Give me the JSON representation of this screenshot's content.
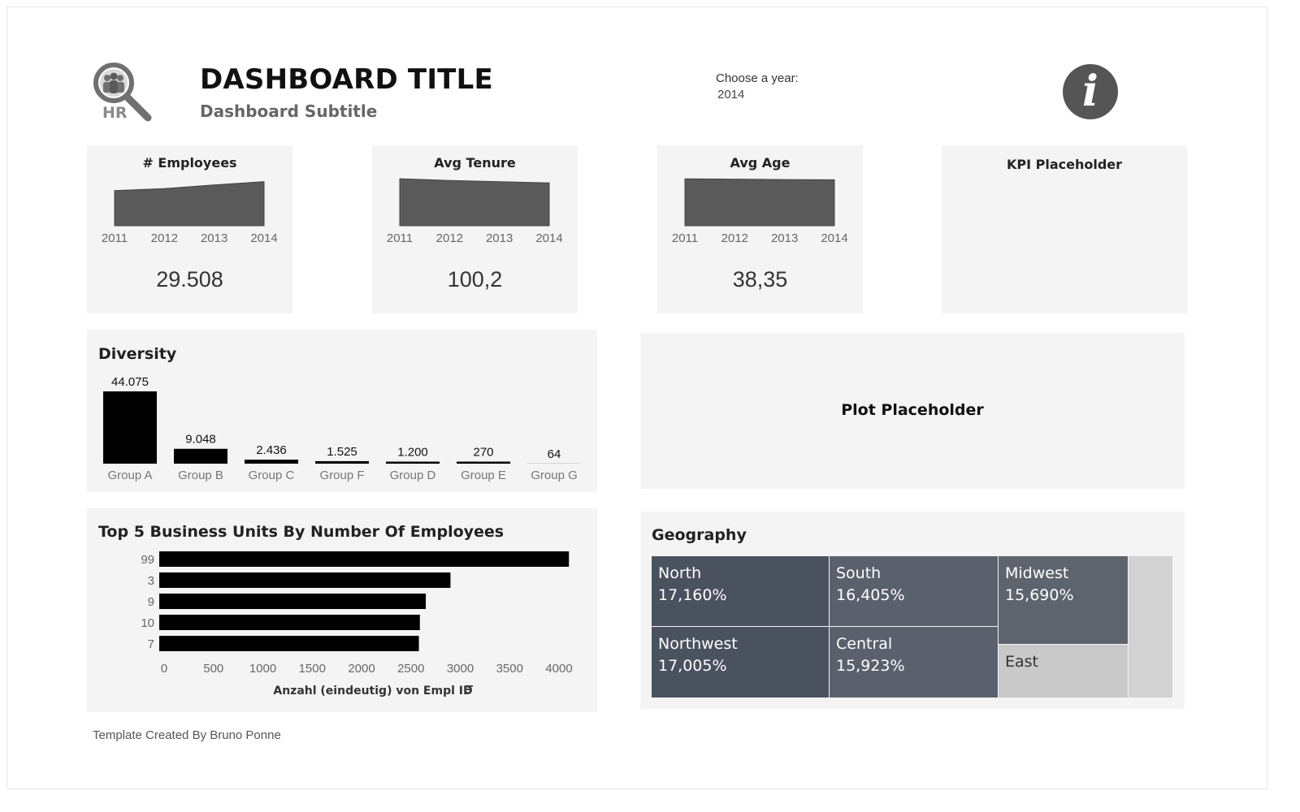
{
  "header": {
    "logo_text": "HR",
    "title": "DASHBOARD TITLE",
    "subtitle": "Dashboard Subtitle",
    "year_filter": {
      "label": "Choose a year:",
      "value": "2014"
    },
    "info_icon": "info-icon"
  },
  "kpis": [
    {
      "title": "# Employees",
      "value": "29.508"
    },
    {
      "title": "Avg Tenure",
      "value": "100,2"
    },
    {
      "title": "Avg Age",
      "value": "38,35"
    },
    {
      "title": "KPI Placeholder"
    }
  ],
  "plot_placeholder": {
    "label": "Plot Placeholder"
  },
  "diversity": {
    "title": "Diversity"
  },
  "business_units": {
    "title": "Top 5 Business Units By Number Of Employees",
    "sort_icon": "sort-icon"
  },
  "geography": {
    "title": "Geography"
  },
  "footer": {
    "credit": "Template Created By Bruno Ponne"
  },
  "colors": {
    "panel": "#f4f4f4",
    "spark": "#5a5a5a",
    "bar": "#000000",
    "tm_dark": "#4a5260",
    "tm_mid": "#5a616c",
    "tm_light": "#c8c9c8",
    "tm_lighter": "#d2d2d2"
  },
  "chart_data": [
    {
      "type": "area",
      "title": "# Employees",
      "categories": [
        "2011",
        "2012",
        "2013",
        "2014"
      ],
      "values": [
        23500,
        24800,
        27300,
        29508
      ],
      "ylim": [
        0,
        32000
      ]
    },
    {
      "type": "area",
      "title": "Avg Tenure",
      "categories": [
        "2011",
        "2012",
        "2013",
        "2014"
      ],
      "values": [
        110,
        106,
        103,
        100.2
      ],
      "ylim": [
        0,
        112
      ]
    },
    {
      "type": "area",
      "title": "Avg Age",
      "categories": [
        "2011",
        "2012",
        "2013",
        "2014"
      ],
      "values": [
        39.2,
        38.9,
        38.6,
        38.35
      ],
      "ylim": [
        0,
        40
      ]
    },
    {
      "type": "bar",
      "title": "Diversity",
      "categories": [
        "Group A",
        "Group B",
        "Group C",
        "Group F",
        "Group D",
        "Group E",
        "Group G"
      ],
      "values": [
        44075,
        9048,
        2436,
        1525,
        1200,
        270,
        64
      ],
      "labels": [
        "44.075",
        "9.048",
        "2.436",
        "1.525",
        "1.200",
        "270",
        "64"
      ],
      "ylim": [
        0,
        44075
      ]
    },
    {
      "type": "bar",
      "orientation": "horizontal",
      "title": "Top 5 Business Units By Number Of Employees",
      "categories": [
        "99",
        "3",
        "9",
        "10",
        "7"
      ],
      "values": [
        4150,
        2950,
        2700,
        2640,
        2630
      ],
      "xlabel": "Anzahl (eindeutig) von Empl ID",
      "xlim": [
        0,
        4000
      ],
      "xticks": [
        "0",
        "500",
        "1000",
        "1500",
        "2000",
        "2500",
        "3000",
        "3500",
        "4000"
      ]
    },
    {
      "type": "treemap",
      "title": "Geography",
      "items": [
        {
          "name": "North",
          "label": "17,160%",
          "value": 17.16
        },
        {
          "name": "Northwest",
          "label": "17,005%",
          "value": 17.005
        },
        {
          "name": "South",
          "label": "16,405%",
          "value": 16.405
        },
        {
          "name": "Central",
          "label": "15,923%",
          "value": 15.923
        },
        {
          "name": "Midwest",
          "label": "15,690%",
          "value": 15.69
        },
        {
          "name": "East",
          "value": 8.6
        },
        {
          "name": "",
          "value": 9.2
        }
      ]
    }
  ]
}
